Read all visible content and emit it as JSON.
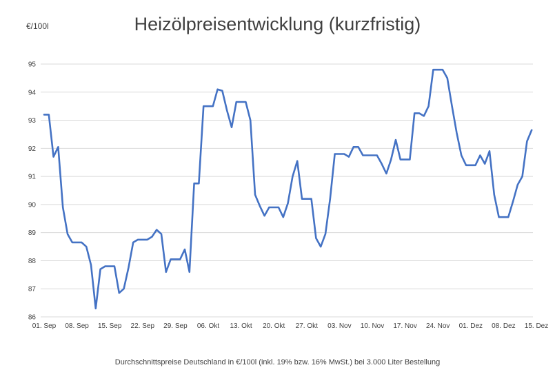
{
  "chart_data": {
    "type": "line",
    "title": "Heizölpreisentwicklung (kurzfristig)",
    "ylabel": "€/100l",
    "footnote": "Durchschnittspreise Deutschland in €/100l (inkl. 19% bzw. 16%  MwSt.) bei 3.000 Liter Bestellung",
    "ylim": [
      86,
      95
    ],
    "yticks": [
      86,
      87,
      88,
      89,
      90,
      91,
      92,
      93,
      94,
      95
    ],
    "grid": true,
    "legend": "none",
    "color": "#4472c4",
    "xlim": [
      "01. Sep",
      "15. Dez"
    ],
    "xtick_labels": [
      "01. Sep",
      "08. Sep",
      "15. Sep",
      "22. Sep",
      "29. Sep",
      "06. Okt",
      "13. Okt",
      "20. Okt",
      "27. Okt",
      "03. Nov",
      "10. Nov",
      "17. Nov",
      "24. Nov",
      "01. Dez",
      "08. Dez",
      "15. Dez"
    ],
    "series": [
      {
        "x": [
          "01. Sep",
          "02. Sep",
          "03. Sep",
          "04. Sep",
          "05. Sep",
          "06. Sep",
          "07. Sep",
          "08. Sep",
          "09. Sep",
          "10. Sep",
          "11. Sep",
          "12. Sep",
          "13. Sep",
          "14. Sep",
          "15. Sep",
          "16. Sep",
          "17. Sep",
          "18. Sep",
          "19. Sep",
          "20. Sep",
          "21. Sep",
          "22. Sep",
          "23. Sep",
          "24. Sep",
          "25. Sep",
          "26. Sep",
          "27. Sep",
          "28. Sep",
          "29. Sep",
          "30. Sep",
          "01. Okt",
          "02. Okt",
          "03. Okt",
          "04. Okt",
          "05. Okt",
          "06. Okt",
          "07. Okt",
          "08. Okt",
          "09. Okt",
          "10. Okt",
          "11. Okt",
          "12. Okt",
          "13. Okt",
          "14. Okt",
          "15. Okt",
          "16. Okt",
          "17. Okt",
          "18. Okt",
          "19. Okt",
          "20. Okt",
          "21. Okt",
          "22. Okt",
          "23. Okt",
          "24. Okt",
          "25. Okt",
          "26. Okt",
          "27. Okt",
          "28. Okt",
          "29. Okt",
          "30. Okt",
          "31. Okt",
          "01. Nov",
          "02. Nov",
          "03. Nov",
          "04. Nov",
          "05. Nov",
          "06. Nov",
          "07. Nov",
          "08. Nov",
          "09. Nov",
          "10. Nov",
          "11. Nov",
          "12. Nov",
          "13. Nov",
          "14. Nov",
          "15. Nov",
          "16. Nov",
          "17. Nov",
          "18. Nov",
          "19. Nov",
          "20. Nov",
          "21. Nov",
          "22. Nov",
          "23. Nov",
          "24. Nov",
          "25. Nov",
          "26. Nov",
          "27. Nov",
          "28. Nov",
          "29. Nov",
          "30. Nov",
          "01. Dez",
          "02. Dez",
          "03. Dez",
          "04. Dez",
          "05. Dez",
          "06. Dez",
          "07. Dez",
          "08. Dez",
          "09. Dez",
          "10. Dez",
          "11. Dez",
          "12. Dez",
          "13. Dez",
          "14. Dez"
        ],
        "y": [
          93.2,
          93.2,
          91.7,
          92.05,
          89.9,
          88.95,
          88.65,
          88.65,
          88.65,
          88.5,
          87.85,
          86.3,
          87.7,
          87.8,
          87.8,
          87.8,
          86.85,
          87.0,
          87.75,
          88.65,
          88.75,
          88.75,
          88.75,
          88.85,
          89.1,
          88.95,
          87.6,
          88.05,
          88.05,
          88.05,
          88.4,
          87.6,
          90.75,
          90.75,
          93.5,
          93.5,
          93.5,
          94.1,
          94.05,
          93.35,
          92.75,
          93.65,
          93.65,
          93.65,
          93.0,
          90.35,
          89.95,
          89.6,
          89.9,
          89.9,
          89.9,
          89.55,
          90.05,
          91.0,
          91.55,
          90.2,
          90.2,
          90.2,
          88.8,
          88.5,
          88.95,
          90.2,
          91.8,
          91.8,
          91.8,
          91.7,
          92.05,
          92.05,
          91.75,
          91.75,
          91.75,
          91.75,
          91.45,
          91.1,
          91.6,
          92.3,
          91.6,
          91.6,
          91.6,
          93.25,
          93.25,
          93.15,
          93.5,
          94.8,
          94.8,
          94.8,
          94.5,
          93.5,
          92.55,
          91.75,
          91.4,
          91.4,
          91.4,
          91.75,
          91.45,
          91.9,
          90.35,
          89.55,
          89.55,
          89.55,
          90.1,
          90.7,
          91.0,
          92.25,
          92.65
        ]
      }
    ]
  }
}
